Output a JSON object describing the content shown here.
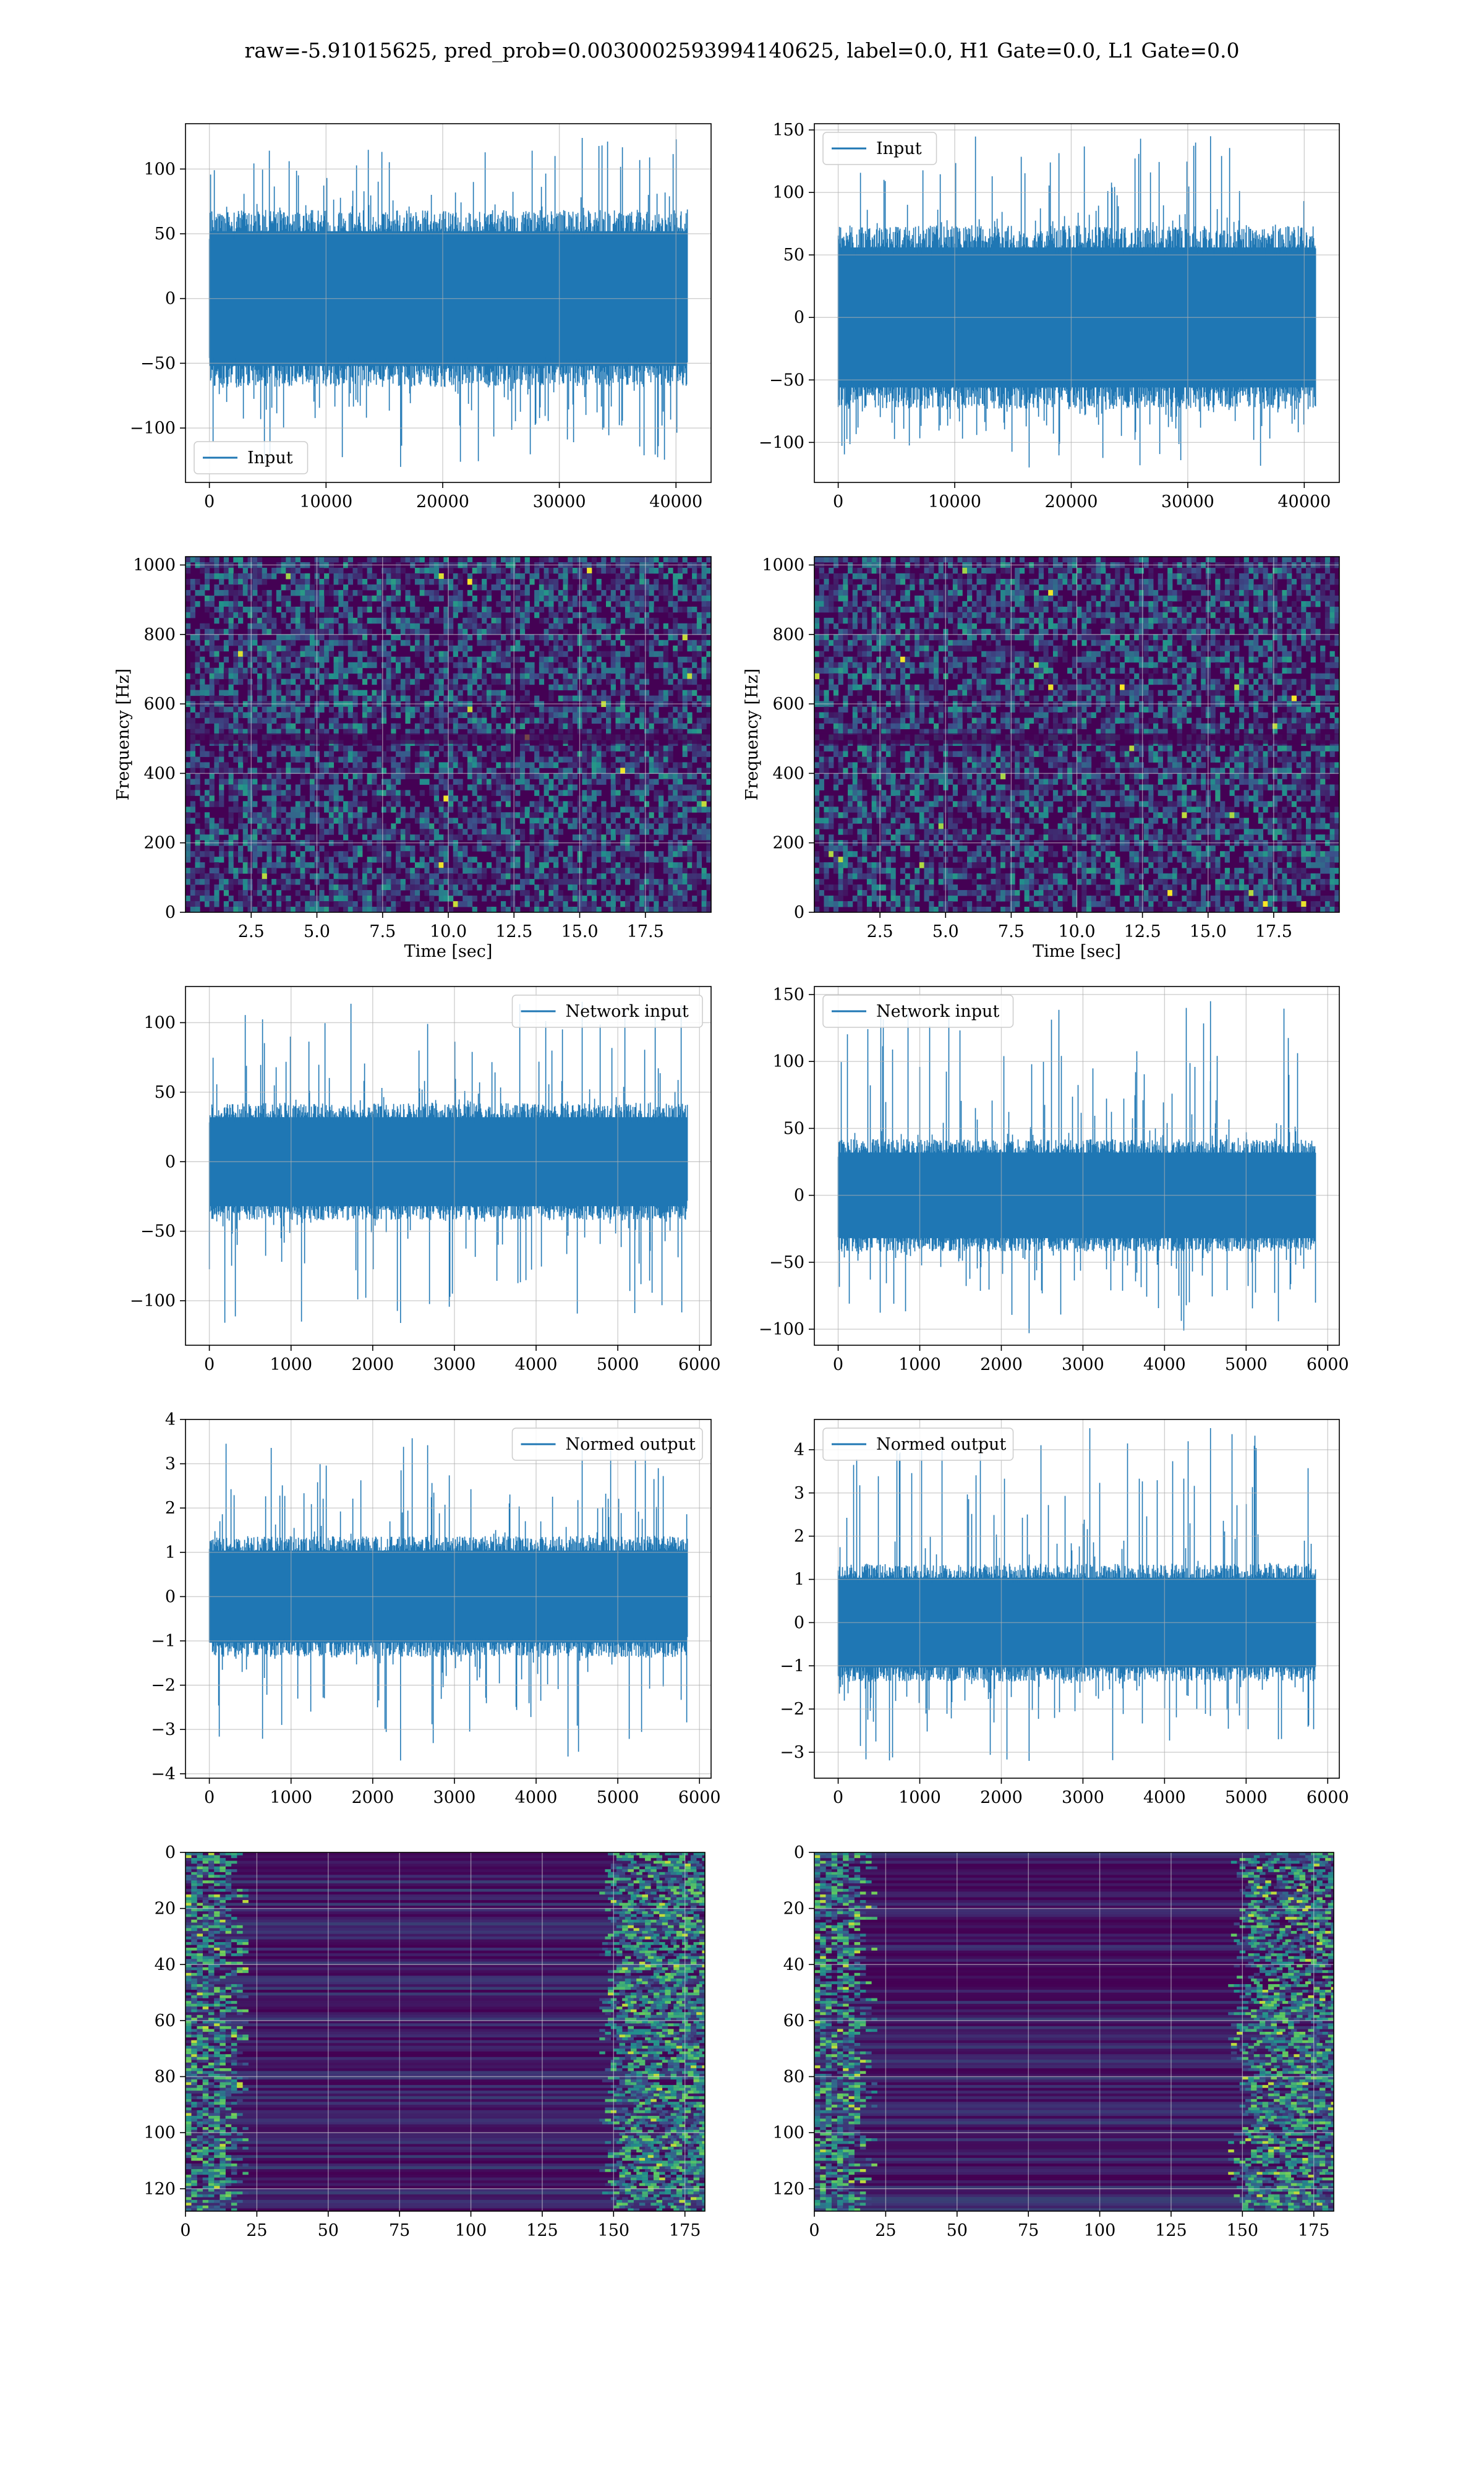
{
  "suptitle": "raw=-5.91015625, pred_prob=0.0030002593994140625, label=0.0, H1 Gate=0.0, L1 Gate=0.0",
  "colors": {
    "line": "#1f77b4",
    "grid": "#b0b0b0",
    "spine": "#000000",
    "viridis_dark": "#440154",
    "viridis_mid": "#21918c",
    "viridis_bright": "#fde725"
  },
  "chart_data": [
    {
      "id": "h1-input",
      "type": "line",
      "x": [
        0,
        40960
      ],
      "xlim": [
        -2048,
        43008
      ],
      "ylim": [
        -142,
        135
      ],
      "xticks": [
        0,
        10000,
        20000,
        30000,
        40000
      ],
      "yticks": [
        -100,
        -50,
        0,
        50,
        100
      ],
      "xtick_labels": [
        "0",
        "10000",
        "20000",
        "30000",
        "40000"
      ],
      "ytick_labels": [
        "−100",
        "−50",
        "0",
        "50",
        "100"
      ],
      "envelope": [
        -65,
        65
      ],
      "peaks": [
        -130,
        124
      ],
      "series": [
        {
          "name": "Input"
        }
      ],
      "legend": "lower-left",
      "grid": true,
      "xlabel": "",
      "ylabel": ""
    },
    {
      "id": "l1-input",
      "type": "line",
      "x": [
        0,
        40960
      ],
      "xlim": [
        -2048,
        43008
      ],
      "ylim": [
        -132,
        155
      ],
      "xticks": [
        0,
        10000,
        20000,
        30000,
        40000
      ],
      "yticks": [
        -100,
        -50,
        0,
        50,
        100,
        150
      ],
      "xtick_labels": [
        "0",
        "10000",
        "20000",
        "30000",
        "40000"
      ],
      "ytick_labels": [
        "−100",
        "−50",
        "0",
        "50",
        "100",
        "150"
      ],
      "envelope": [
        -70,
        70
      ],
      "peaks": [
        -120,
        145
      ],
      "series": [
        {
          "name": "Input"
        }
      ],
      "legend": "upper-left",
      "grid": true,
      "xlabel": "",
      "ylabel": ""
    },
    {
      "id": "h1-spectrogram",
      "type": "heatmap",
      "xlim": [
        0,
        20
      ],
      "ylim": [
        0,
        1024
      ],
      "xticks": [
        2.5,
        5.0,
        7.5,
        10.0,
        12.5,
        15.0,
        17.5
      ],
      "yticks": [
        0,
        200,
        400,
        600,
        800,
        1000
      ],
      "xtick_labels": [
        "2.5",
        "5.0",
        "7.5",
        "10.0",
        "12.5",
        "15.0",
        "17.5"
      ],
      "ytick_labels": [
        "0",
        "200",
        "400",
        "600",
        "800",
        "1000"
      ],
      "colormap": "viridis",
      "grid": true,
      "xlabel": "Time [sec]",
      "ylabel": "Frequency [Hz]"
    },
    {
      "id": "l1-spectrogram",
      "type": "heatmap",
      "xlim": [
        0,
        20
      ],
      "ylim": [
        0,
        1024
      ],
      "xticks": [
        2.5,
        5.0,
        7.5,
        10.0,
        12.5,
        15.0,
        17.5
      ],
      "yticks": [
        0,
        200,
        400,
        600,
        800,
        1000
      ],
      "xtick_labels": [
        "2.5",
        "5.0",
        "7.5",
        "10.0",
        "12.5",
        "15.0",
        "17.5"
      ],
      "ytick_labels": [
        "0",
        "200",
        "400",
        "600",
        "800",
        "1000"
      ],
      "colormap": "viridis",
      "grid": true,
      "xlabel": "Time [sec]",
      "ylabel": "Frequency [Hz]"
    },
    {
      "id": "h1-network-input",
      "type": "line",
      "x": [
        0,
        5850
      ],
      "xlim": [
        -292,
        6142
      ],
      "ylim": [
        -132,
        126
      ],
      "xticks": [
        0,
        1000,
        2000,
        3000,
        4000,
        5000,
        6000
      ],
      "yticks": [
        -100,
        -50,
        0,
        50,
        100
      ],
      "xtick_labels": [
        "0",
        "1000",
        "2000",
        "3000",
        "4000",
        "5000",
        "6000"
      ],
      "ytick_labels": [
        "−100",
        "−50",
        "0",
        "50",
        "100"
      ],
      "envelope": [
        -40,
        40
      ],
      "peaks": [
        -116,
        115
      ],
      "series": [
        {
          "name": "Network input"
        }
      ],
      "legend": "upper-right",
      "grid": true,
      "xlabel": "",
      "ylabel": ""
    },
    {
      "id": "l1-network-input",
      "type": "line",
      "x": [
        0,
        5850
      ],
      "xlim": [
        -292,
        6142
      ],
      "ylim": [
        -112,
        156
      ],
      "xticks": [
        0,
        1000,
        2000,
        3000,
        4000,
        5000,
        6000
      ],
      "yticks": [
        -100,
        -50,
        0,
        50,
        100,
        150
      ],
      "xtick_labels": [
        "0",
        "1000",
        "2000",
        "3000",
        "4000",
        "5000",
        "6000"
      ],
      "ytick_labels": [
        "−100",
        "−50",
        "0",
        "50",
        "100",
        "150"
      ],
      "envelope": [
        -40,
        40
      ],
      "peaks": [
        -103,
        145
      ],
      "series": [
        {
          "name": "Network input"
        }
      ],
      "legend": "upper-left",
      "grid": true,
      "xlabel": "",
      "ylabel": ""
    },
    {
      "id": "h1-normed-output",
      "type": "line",
      "x": [
        0,
        5850
      ],
      "xlim": [
        -292,
        6142
      ],
      "ylim": [
        -4.1,
        4.0
      ],
      "xticks": [
        0,
        1000,
        2000,
        3000,
        4000,
        5000,
        6000
      ],
      "yticks": [
        -4,
        -3,
        -2,
        -1,
        0,
        1,
        2,
        3,
        4
      ],
      "xtick_labels": [
        "0",
        "1000",
        "2000",
        "3000",
        "4000",
        "5000",
        "6000"
      ],
      "ytick_labels": [
        "−4",
        "−3",
        "−2",
        "−1",
        "0",
        "1",
        "2",
        "3",
        "4"
      ],
      "envelope": [
        -1.3,
        1.3
      ],
      "peaks": [
        -3.7,
        3.6
      ],
      "series": [
        {
          "name": "Normed output"
        }
      ],
      "legend": "upper-right",
      "grid": true,
      "xlabel": "",
      "ylabel": ""
    },
    {
      "id": "l1-normed-output",
      "type": "line",
      "x": [
        0,
        5850
      ],
      "xlim": [
        -292,
        6142
      ],
      "ylim": [
        -3.6,
        4.7
      ],
      "xticks": [
        0,
        1000,
        2000,
        3000,
        4000,
        5000,
        6000
      ],
      "yticks": [
        -3,
        -2,
        -1,
        0,
        1,
        2,
        3,
        4
      ],
      "xtick_labels": [
        "0",
        "1000",
        "2000",
        "3000",
        "4000",
        "5000",
        "6000"
      ],
      "ytick_labels": [
        "−3",
        "−2",
        "−1",
        "0",
        "1",
        "2",
        "3",
        "4"
      ],
      "envelope": [
        -1.3,
        1.3
      ],
      "peaks": [
        -3.2,
        4.5
      ],
      "series": [
        {
          "name": "Normed output"
        }
      ],
      "legend": "upper-left",
      "grid": true,
      "xlabel": "",
      "ylabel": ""
    },
    {
      "id": "h1-feature-map",
      "type": "heatmap",
      "xlim": [
        0,
        182
      ],
      "ylim": [
        128,
        0
      ],
      "xticks": [
        0,
        25,
        50,
        75,
        100,
        125,
        150,
        175
      ],
      "yticks": [
        0,
        20,
        40,
        60,
        80,
        100,
        120
      ],
      "xtick_labels": [
        "0",
        "25",
        "50",
        "75",
        "100",
        "125",
        "150",
        "175"
      ],
      "ytick_labels": [
        "0",
        "20",
        "40",
        "60",
        "80",
        "100",
        "120"
      ],
      "colormap": "viridis",
      "grid": true,
      "xlabel": "",
      "ylabel": ""
    },
    {
      "id": "l1-feature-map",
      "type": "heatmap",
      "xlim": [
        0,
        182
      ],
      "ylim": [
        128,
        0
      ],
      "xticks": [
        0,
        25,
        50,
        75,
        100,
        125,
        150,
        175
      ],
      "yticks": [
        0,
        20,
        40,
        60,
        80,
        100,
        120
      ],
      "xtick_labels": [
        "0",
        "25",
        "50",
        "75",
        "100",
        "125",
        "150",
        "175"
      ],
      "ytick_labels": [
        "0",
        "20",
        "40",
        "60",
        "80",
        "100",
        "120"
      ],
      "colormap": "viridis",
      "grid": true,
      "xlabel": "",
      "ylabel": ""
    }
  ]
}
